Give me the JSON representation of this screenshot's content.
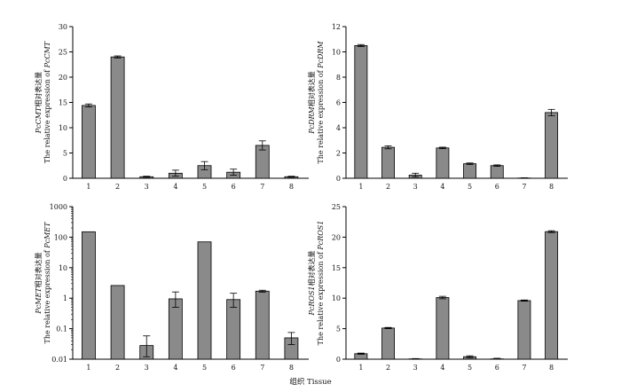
{
  "figure": {
    "shared_xlabel": "组织 Tissue"
  },
  "chart_data": [
    {
      "id": "pcmt",
      "type": "bar",
      "scale": "linear",
      "categories": [
        "1",
        "2",
        "3",
        "4",
        "5",
        "6",
        "7",
        "8"
      ],
      "values": [
        14.4,
        24.0,
        0.3,
        1.0,
        2.5,
        1.2,
        6.5,
        0.3
      ],
      "errors": [
        0.3,
        0.2,
        0.1,
        0.6,
        0.8,
        0.6,
        0.9,
        0.1
      ],
      "ylim": [
        0,
        30
      ],
      "yticks": [
        0,
        5,
        10,
        15,
        20,
        25,
        30
      ],
      "ytick_labels": [
        "0",
        "5",
        "10",
        "15",
        "20",
        "25",
        "30"
      ],
      "ylabel_line1_italic": "PcCMT",
      "ylabel_line1_rest": "相对表达量",
      "ylabel_line2_prefix": "The relative expression of ",
      "ylabel_line2_italic": "PcCMT",
      "bar_color": "#8a8a8a"
    },
    {
      "id": "pcdrm",
      "type": "bar",
      "scale": "linear",
      "categories": [
        "1",
        "2",
        "3",
        "4",
        "5",
        "6",
        "7",
        "8"
      ],
      "values": [
        10.5,
        2.45,
        0.25,
        2.4,
        1.15,
        1.0,
        0.02,
        5.2
      ],
      "errors": [
        0.08,
        0.12,
        0.15,
        0.06,
        0.06,
        0.06,
        0.02,
        0.25
      ],
      "ylim": [
        0,
        12
      ],
      "yticks": [
        0,
        2,
        4,
        6,
        8,
        10,
        12
      ],
      "ytick_labels": [
        "0",
        "2",
        "4",
        "6",
        "8",
        "10",
        "12"
      ],
      "ylabel_line1_italic": "PcDRM",
      "ylabel_line1_rest": "相对表达量",
      "ylabel_line2_prefix": "The relative expression of ",
      "ylabel_line2_italic": "PcDRM",
      "bar_color": "#8a8a8a"
    },
    {
      "id": "pcmet",
      "type": "bar",
      "scale": "log",
      "categories": [
        "1",
        "2",
        "3",
        "4",
        "5",
        "6",
        "7",
        "8"
      ],
      "values": [
        150,
        2.6,
        0.028,
        0.95,
        70,
        0.9,
        1.7,
        0.05
      ],
      "err_low": [
        0,
        0,
        0.016,
        0.45,
        0,
        0.4,
        0.12,
        0.02
      ],
      "err_high": [
        0,
        0,
        0.03,
        0.65,
        0,
        0.55,
        0.12,
        0.025
      ],
      "ylim": [
        0.01,
        1000
      ],
      "yticks": [
        0.01,
        0.1,
        1,
        10,
        100,
        1000
      ],
      "ytick_labels": [
        "0.01",
        "0.1",
        "1",
        "10",
        "100",
        "1000"
      ],
      "ylabel_line1_italic": "PcMET",
      "ylabel_line1_rest": "相对表达量",
      "ylabel_line2_prefix": "The relative expression of ",
      "ylabel_line2_italic": "PcMET",
      "bar_color": "#8a8a8a"
    },
    {
      "id": "pcros1",
      "type": "bar",
      "scale": "linear",
      "categories": [
        "1",
        "2",
        "3",
        "4",
        "5",
        "6",
        "7",
        "8"
      ],
      "values": [
        0.9,
        5.1,
        0.05,
        10.1,
        0.4,
        0.05,
        9.6,
        20.9
      ],
      "errors": [
        0.1,
        0.1,
        0.05,
        0.2,
        0.15,
        0.1,
        0.1,
        0.15
      ],
      "ylim": [
        0,
        25
      ],
      "yticks": [
        0,
        5,
        10,
        15,
        20,
        25
      ],
      "ytick_labels": [
        "0",
        "5",
        "10",
        "15",
        "20",
        "25"
      ],
      "ylabel_line1_italic": "PcROS1",
      "ylabel_line1_rest": "相对表达量",
      "ylabel_line2_prefix": "The relative expression of ",
      "ylabel_line2_italic": "PcROS1",
      "bar_color": "#8a8a8a"
    }
  ]
}
